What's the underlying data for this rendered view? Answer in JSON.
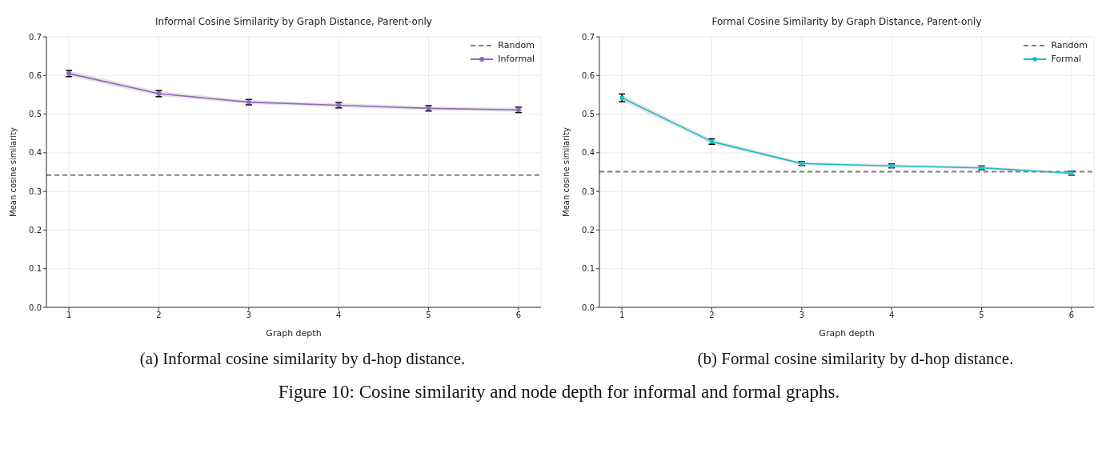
{
  "chart_data": [
    {
      "type": "line",
      "title": "Informal Cosine Similarity by Graph Distance, Parent-only",
      "xlabel": "Graph depth",
      "ylabel": "Mean cosine similarity",
      "x": [
        1,
        2,
        3,
        4,
        5,
        6
      ],
      "series": [
        {
          "name": "Informal",
          "color": "#9467bd",
          "values": [
            0.605,
            0.553,
            0.531,
            0.523,
            0.515,
            0.511
          ],
          "errors": [
            0.008,
            0.008,
            0.007,
            0.007,
            0.007,
            0.007
          ],
          "lower": [
            0.598,
            0.547,
            0.526,
            0.518,
            0.51,
            0.506
          ],
          "upper": [
            0.612,
            0.559,
            0.536,
            0.528,
            0.52,
            0.516
          ]
        }
      ],
      "xlim": [
        0.75,
        6.25
      ],
      "xticks": [
        1,
        2,
        3,
        4,
        5,
        6
      ],
      "ylim": [
        0,
        0.7
      ],
      "yticks": [
        {
          "value": 0,
          "label": "0.0"
        },
        0.1,
        0.2,
        0.3,
        0.4,
        0.5,
        0.6,
        0.7
      ],
      "ref_lines": [
        {
          "axis": "y",
          "value": 0.342,
          "label": "Random",
          "color": "#808080",
          "line_style": "dashed"
        }
      ],
      "grid": true,
      "legend": "top right",
      "marker": "circle",
      "line_style": "solid",
      "annotations": [
        "(a) Informal cosine similarity by d-hop distance."
      ]
    },
    {
      "type": "line",
      "title": "Formal Cosine Similarity by Graph Distance, Parent-only",
      "xlabel": "Graph depth",
      "ylabel": "Mean cosine similarity",
      "x": [
        1,
        2,
        3,
        4,
        5,
        6
      ],
      "series": [
        {
          "name": "Formal",
          "color": "#17becf",
          "values": [
            0.542,
            0.429,
            0.372,
            0.366,
            0.361,
            0.347
          ],
          "errors": [
            0.01,
            0.007,
            0.005,
            0.005,
            0.005,
            0.005
          ],
          "lower": [
            0.534,
            0.423,
            0.368,
            0.362,
            0.357,
            0.344
          ],
          "upper": [
            0.55,
            0.435,
            0.376,
            0.37,
            0.365,
            0.35
          ]
        }
      ],
      "xlim": [
        0.75,
        6.25
      ],
      "xticks": [
        1,
        2,
        3,
        4,
        5,
        6
      ],
      "ylim": [
        0,
        0.7
      ],
      "yticks": [
        {
          "value": 0,
          "label": "0.0"
        },
        0.1,
        0.2,
        0.3,
        0.4,
        0.5,
        0.6,
        0.7
      ],
      "ref_lines": [
        {
          "axis": "y",
          "value": 0.351,
          "label": "Random",
          "color": "#808080",
          "line_style": "dashed"
        }
      ],
      "grid": true,
      "legend": "top right",
      "marker": "square",
      "line_style": "solid",
      "annotations": [
        "(b) Formal cosine similarity by d-hop distance.",
        "Figure 10: Cosine similarity and node depth for informal and formal graphs."
      ]
    }
  ]
}
